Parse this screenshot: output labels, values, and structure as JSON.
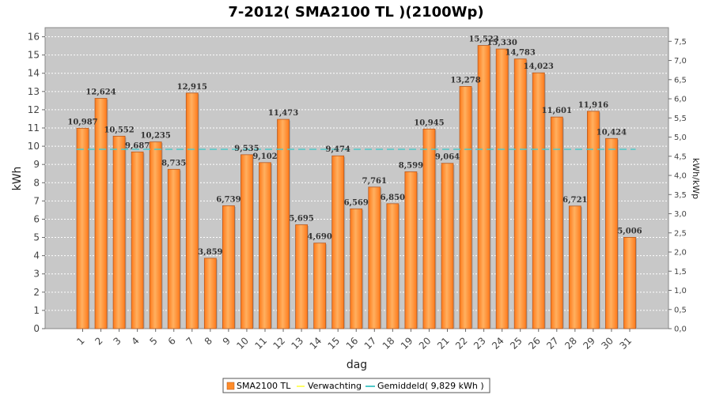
{
  "chart_data": {
    "type": "bar",
    "title": "7-2012( SMA2100 TL )(2100Wp)",
    "xlabel": "dag",
    "ylabel": "kWh",
    "y2label": "kWh/kWp",
    "ylim": [
      0,
      16.5
    ],
    "y2lim": [
      0,
      7.857
    ],
    "yticks": [
      0,
      1,
      2,
      3,
      4,
      5,
      6,
      7,
      8,
      9,
      10,
      11,
      12,
      13,
      14,
      15,
      16
    ],
    "y2ticks": [
      "0,0",
      "0,5",
      "1,0",
      "1,5",
      "2,0",
      "2,5",
      "3,0",
      "3,5",
      "4,0",
      "4,5",
      "5,0",
      "5,5",
      "6,0",
      "6,5",
      "7,0",
      "7,5"
    ],
    "categories": [
      "1",
      "2",
      "3",
      "4",
      "5",
      "6",
      "7",
      "8",
      "9",
      "10",
      "11",
      "12",
      "13",
      "14",
      "15",
      "16",
      "17",
      "18",
      "19",
      "20",
      "21",
      "22",
      "23",
      "24",
      "25",
      "26",
      "27",
      "28",
      "29",
      "30",
      "31"
    ],
    "series": [
      {
        "name": "SMA2100 TL",
        "color": "#ff8c2a",
        "values": [
          10.987,
          12.624,
          10.552,
          9.687,
          10.235,
          8.735,
          12.915,
          3.859,
          6.739,
          9.535,
          9.102,
          11.473,
          5.695,
          4.69,
          9.474,
          6.569,
          7.761,
          6.85,
          8.599,
          10.945,
          9.064,
          13.278,
          15.523,
          15.33,
          14.783,
          14.023,
          11.601,
          6.721,
          11.916,
          10.424,
          5.006
        ]
      }
    ],
    "data_labels": [
      "10,987",
      "12,624",
      "10,552",
      "9,687",
      "10,235",
      "8,735",
      "12,915",
      "3,859",
      "6,739",
      "9,535",
      "9,102",
      "11,473",
      "5,695",
      "4,690",
      "9,474",
      "6,569",
      "7,761",
      "6,850",
      "8,599",
      "10,945",
      "9,064",
      "13,278",
      "15,523",
      "15,330",
      "14,783",
      "14,023",
      "11,601",
      "6,721",
      "11,916",
      "10,424",
      "5,006"
    ],
    "average": {
      "name": "Gemiddeld( 9,829 kWh )",
      "value": 9.829,
      "color": "#4fc8c8"
    },
    "expectation": {
      "name": "Verwachting",
      "color": "#ffff66"
    },
    "legend_position": "bottom-center"
  }
}
